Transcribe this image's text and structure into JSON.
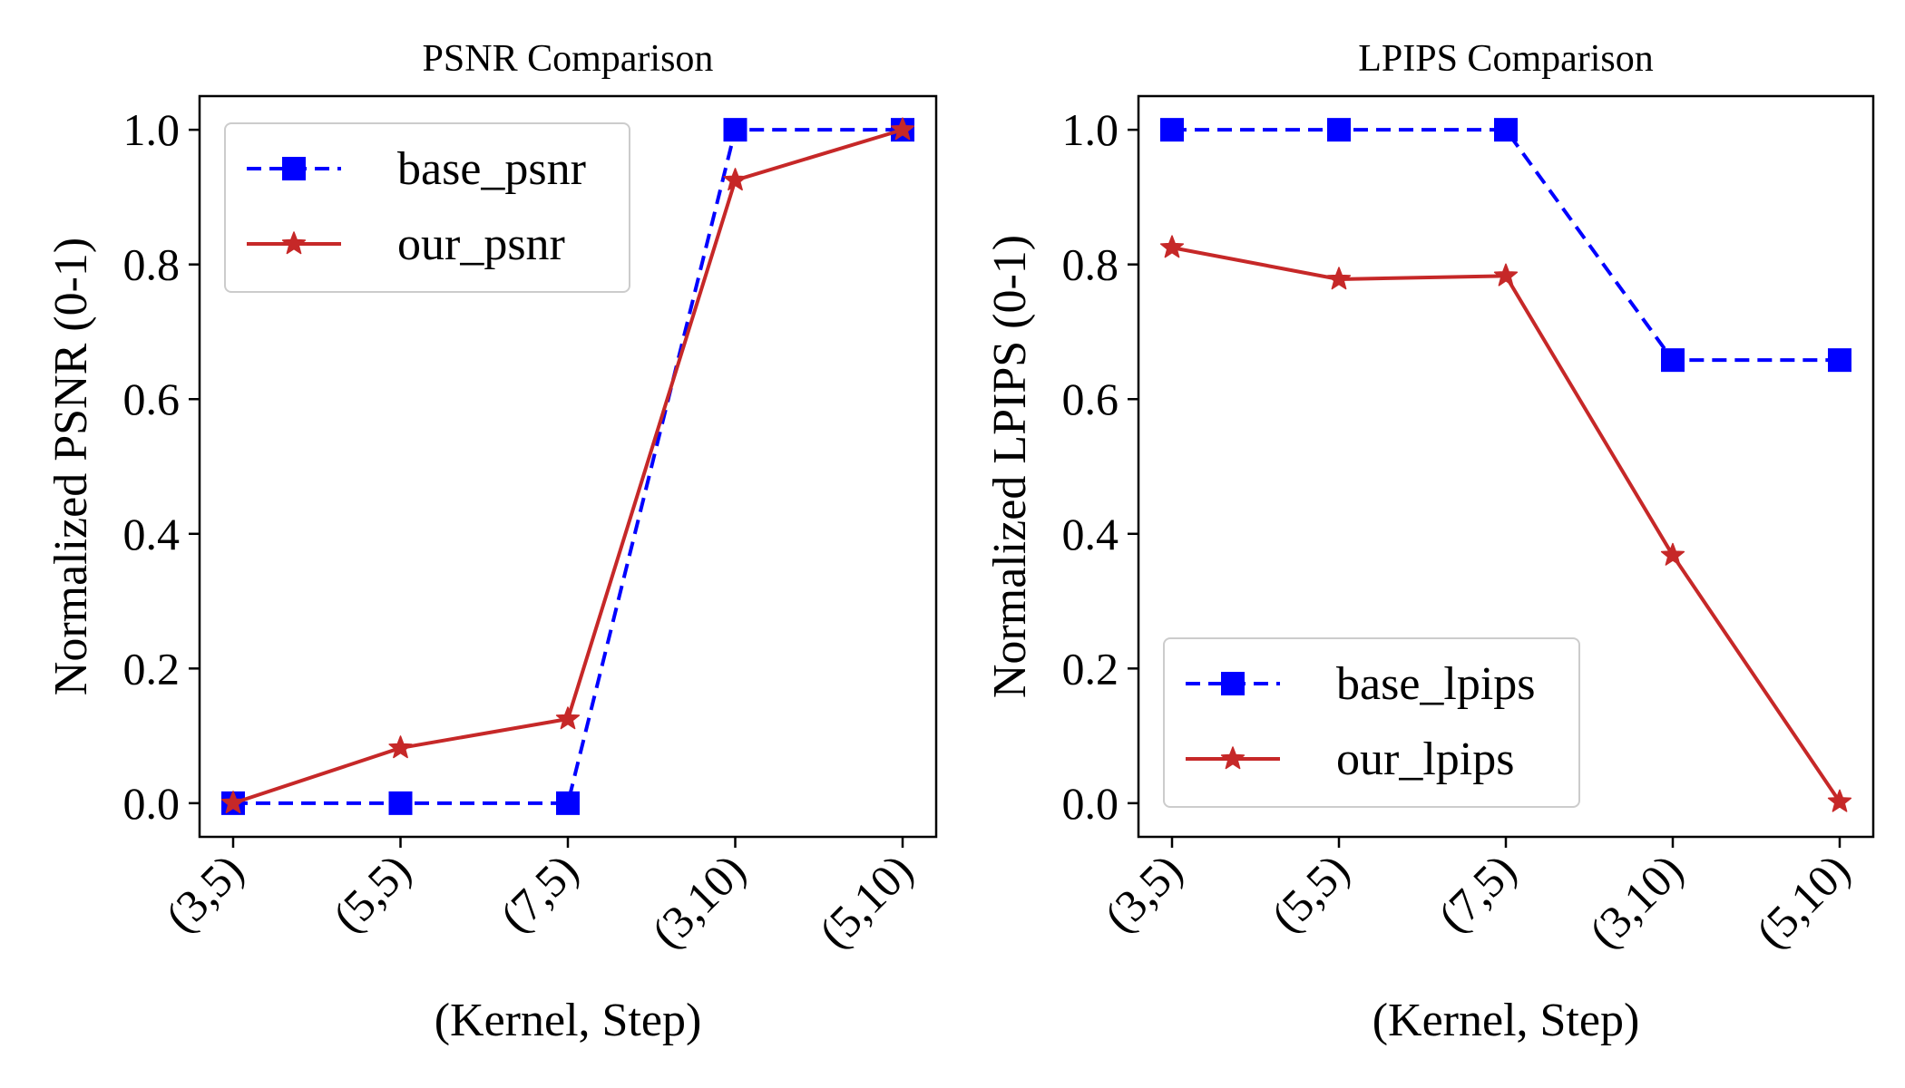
{
  "chart_data": [
    {
      "type": "line",
      "title": "PSNR Comparison",
      "xlabel": "(Kernel, Step)",
      "ylabel": "Normalized PSNR (0-1)",
      "categories": [
        "(3,5)",
        "(5,5)",
        "(7,5)",
        "(3,10)",
        "(5,10)"
      ],
      "ylim": [
        -0.05,
        1.05
      ],
      "yticks": [
        "0.0",
        "0.2",
        "0.4",
        "0.6",
        "0.8",
        "1.0"
      ],
      "grid": false,
      "legend_position": "top-left",
      "series": [
        {
          "name": "base_psnr",
          "color": "#0000ff",
          "style": "dashed",
          "marker": "square",
          "values": [
            0.0,
            0.0,
            0.0,
            1.0,
            1.0
          ]
        },
        {
          "name": "our_psnr",
          "color": "#c62828",
          "style": "solid",
          "marker": "star",
          "values": [
            0.0,
            0.082,
            0.125,
            0.925,
            1.0
          ]
        }
      ]
    },
    {
      "type": "line",
      "title": "LPIPS Comparison",
      "xlabel": "(Kernel, Step)",
      "ylabel": "Normalized LPIPS (0-1)",
      "categories": [
        "(3,5)",
        "(5,5)",
        "(7,5)",
        "(3,10)",
        "(5,10)"
      ],
      "ylim": [
        -0.05,
        1.05
      ],
      "yticks": [
        "0.0",
        "0.2",
        "0.4",
        "0.6",
        "0.8",
        "1.0"
      ],
      "grid": false,
      "legend_position": "bottom-left",
      "series": [
        {
          "name": "base_lpips",
          "color": "#0000ff",
          "style": "dashed",
          "marker": "square",
          "values": [
            1.0,
            1.0,
            1.0,
            0.658,
            0.658
          ]
        },
        {
          "name": "our_lpips",
          "color": "#c62828",
          "style": "solid",
          "marker": "star",
          "values": [
            0.825,
            0.778,
            0.783,
            0.368,
            0.002
          ]
        }
      ]
    }
  ]
}
